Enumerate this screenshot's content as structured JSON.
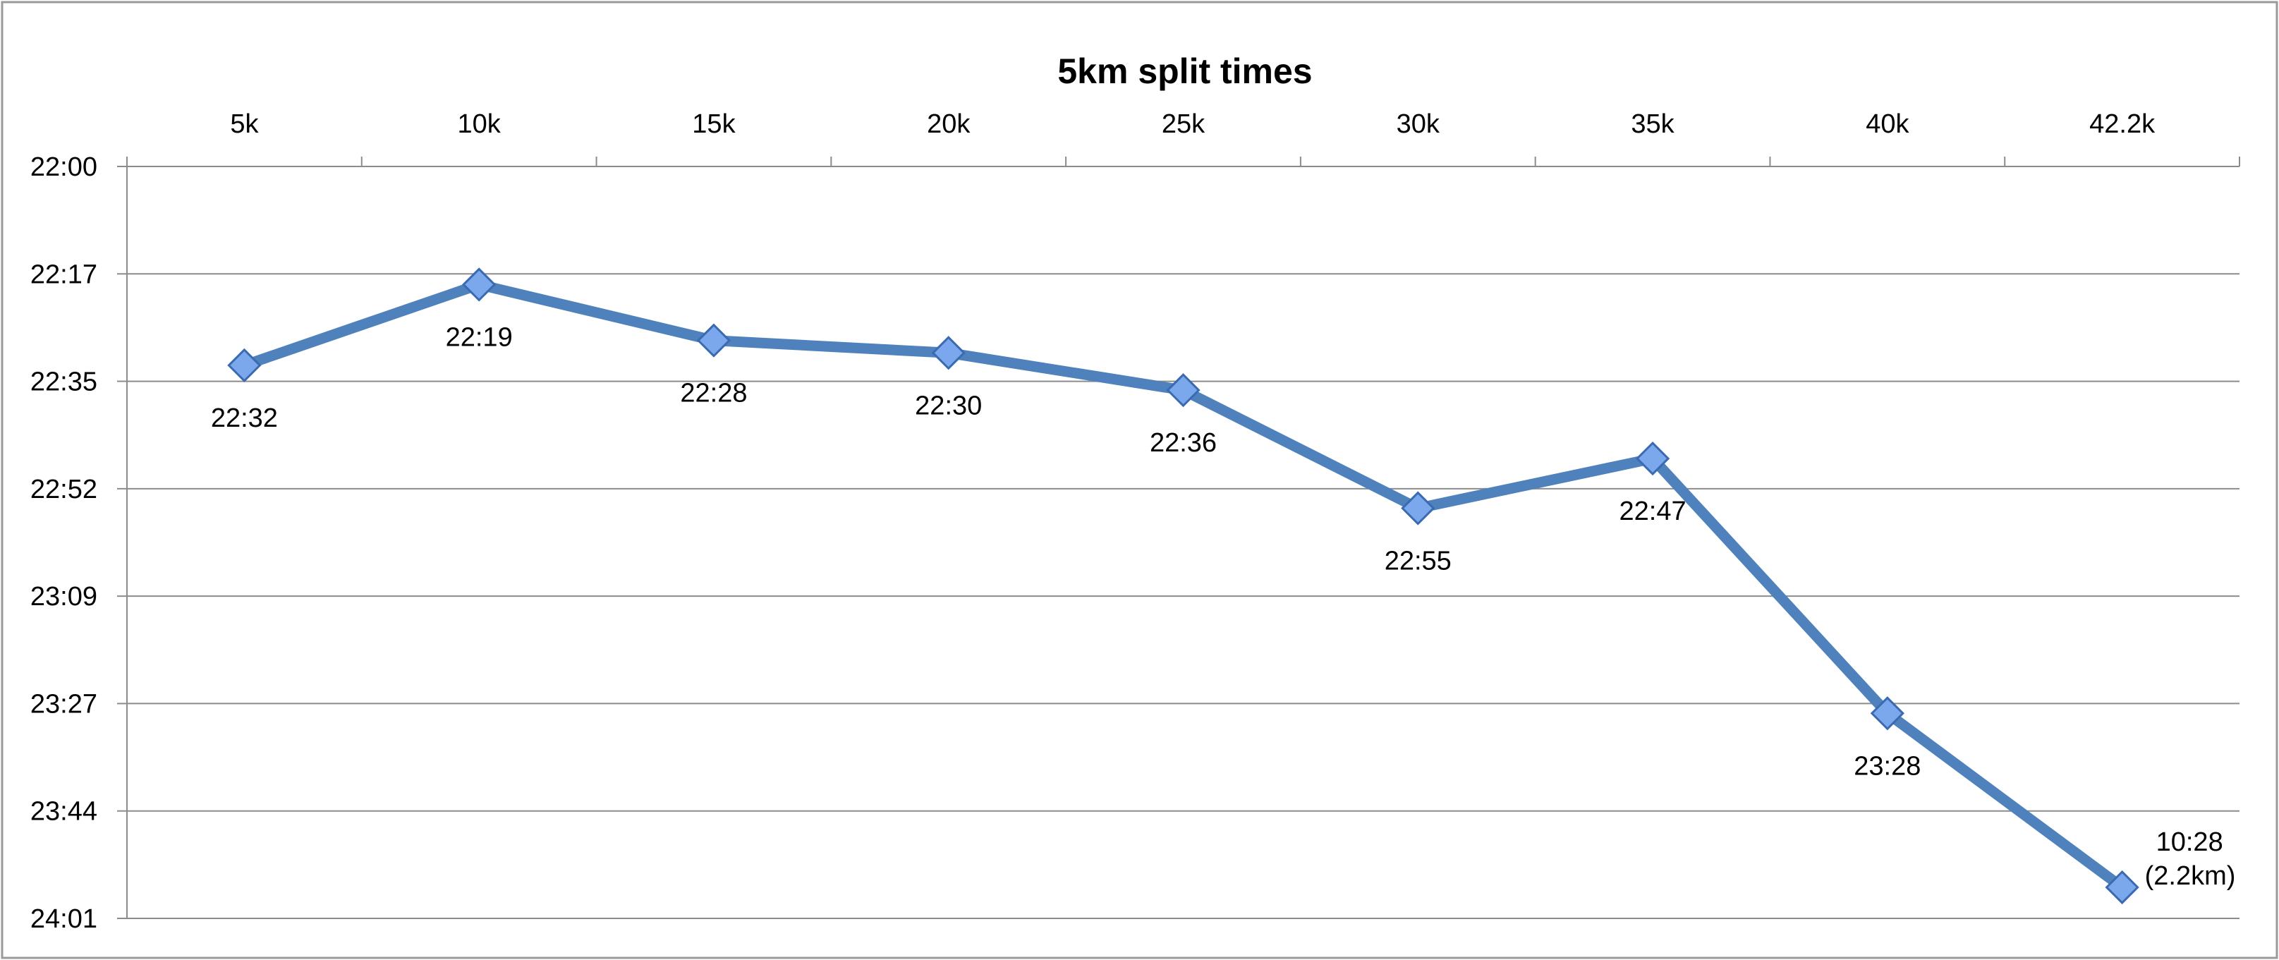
{
  "chart_data": {
    "type": "line",
    "title": "5km split times",
    "categories": [
      "5k",
      "10k",
      "15k",
      "20k",
      "25k",
      "30k",
      "35k",
      "40k",
      "42.2k"
    ],
    "y_tick_labels": [
      "22:00",
      "22:17",
      "22:35",
      "22:52",
      "23:09",
      "23:27",
      "23:44",
      "24:01"
    ],
    "y_axis": {
      "min_seconds": 1320,
      "max_seconds": 1441,
      "inverted": true,
      "format": "mm:ss"
    },
    "x_axis_position": "top",
    "grid": {
      "horizontal": true,
      "vertical": false
    },
    "legend": "none",
    "series": [
      {
        "values_seconds": [
          1352,
          1339,
          1348,
          1350,
          1356,
          1375,
          1367,
          1408,
          1436
        ],
        "labels": [
          "22:32",
          "22:19",
          "22:28",
          "22:30",
          "22:36",
          "22:55",
          "22:47",
          "23:28",
          "10:28\n(2.2km)"
        ],
        "color": "#4F81BD",
        "marker": "diamond",
        "marker_color": "#6E9DE6"
      }
    ],
    "colors": {
      "line": "#4F81BD",
      "marker_fill": "#7BA7EC",
      "marker_stroke": "#3A6AB0",
      "grid": "#8C8C8C",
      "axis": "#8C8C8C",
      "border": "#9A9A9A"
    }
  }
}
